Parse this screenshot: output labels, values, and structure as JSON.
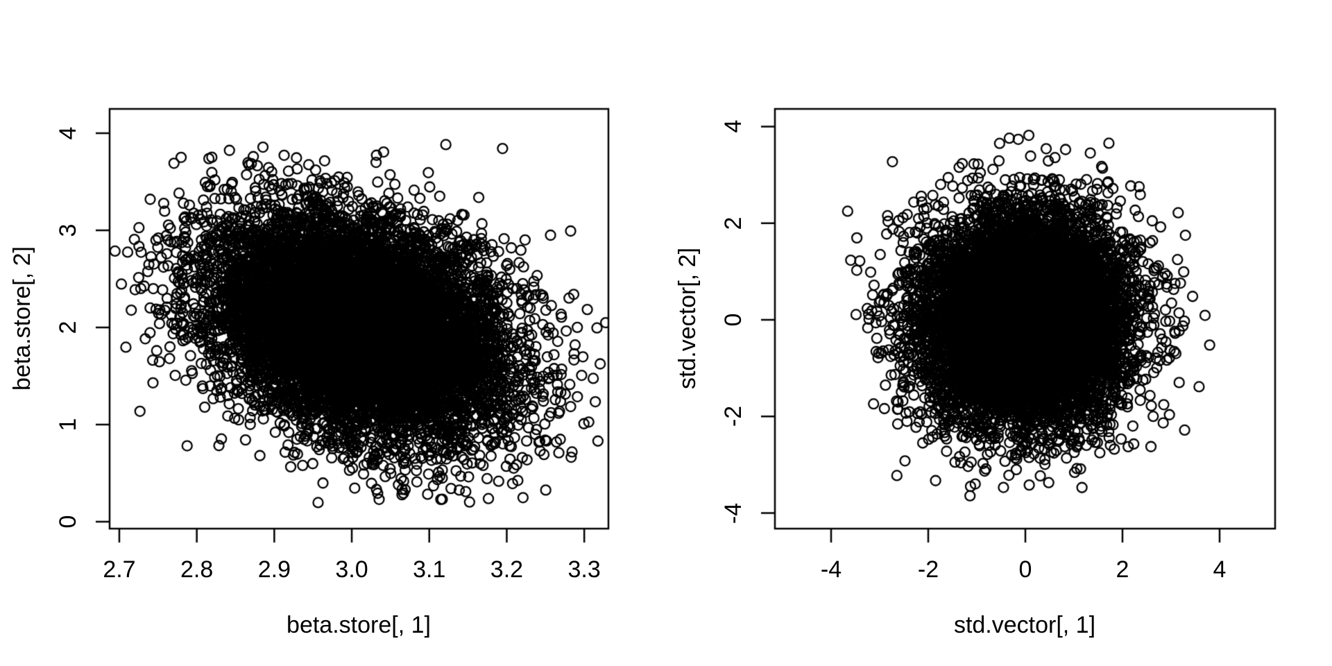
{
  "figure": {
    "background": "#ffffff",
    "foreground": "#000000"
  },
  "chart_data": [
    {
      "type": "scatter",
      "panel": "left",
      "title": "",
      "xlabel": "beta.store[, 1]",
      "ylabel": "beta.store[, 2]",
      "marker": "open-circle",
      "marker_color": "#000000",
      "marker_radius_px": 7,
      "n_points": 10000,
      "x_ticks": [
        2.7,
        2.8,
        2.9,
        3.0,
        3.1,
        3.2,
        3.3
      ],
      "x_tick_labels": [
        "2.7",
        "2.8",
        "2.9",
        "3.0",
        "3.1",
        "3.2",
        "3.3"
      ],
      "y_ticks": [
        0,
        1,
        2,
        3,
        4
      ],
      "y_tick_labels": [
        "0",
        "1",
        "2",
        "3",
        "4"
      ],
      "xlim": [
        2.6875,
        3.3312
      ],
      "ylim": [
        -0.0714,
        4.25
      ],
      "grid": false,
      "distribution": {
        "kind": "bivariate-normal",
        "mean_x": 3.007,
        "sd_x": 0.096,
        "mean_y": 2.03,
        "sd_y": 0.565,
        "correlation": -0.32,
        "x_range": [
          2.692,
          3.328
        ],
        "y_range": [
          0.15,
          4.12
        ],
        "seed": 1234567
      }
    },
    {
      "type": "scatter",
      "panel": "right",
      "title": "",
      "xlabel": "std.vector[, 1]",
      "ylabel": "std.vector[, 2]",
      "marker": "open-circle",
      "marker_color": "#000000",
      "marker_radius_px": 7,
      "n_points": 10000,
      "x_ticks": [
        -4,
        -2,
        0,
        2,
        4
      ],
      "x_tick_labels": [
        "-4",
        "-2",
        "0",
        "2",
        "4"
      ],
      "y_ticks": [
        -4,
        -2,
        0,
        2,
        4
      ],
      "y_tick_labels": [
        "-4",
        "-2",
        "0",
        "2",
        "4"
      ],
      "xlim": [
        -5.157,
        5.143
      ],
      "ylim": [
        -4.323,
        4.366
      ],
      "grid": false,
      "distribution": {
        "kind": "bivariate-normal",
        "mean_x": 0.0,
        "sd_x": 1.06,
        "mean_y": 0.0,
        "sd_y": 1.05,
        "correlation": 0.02,
        "x_range": [
          -3.85,
          3.9
        ],
        "y_range": [
          -3.65,
          4.0
        ],
        "seed": 7654321
      }
    }
  ]
}
